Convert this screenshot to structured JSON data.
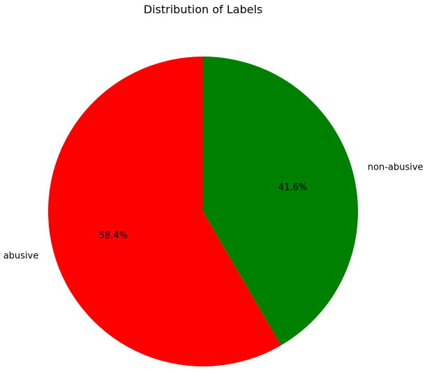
{
  "chart_data": {
    "type": "pie",
    "title": "Distribution of Labels",
    "slices": [
      {
        "label": "abusive",
        "value": 58.4,
        "pct_label": "58.4%",
        "color": "#ff0000"
      },
      {
        "label": "non-abusive",
        "value": 41.6,
        "pct_label": "41.6%",
        "color": "#008000"
      }
    ],
    "start_angle_deg": 90,
    "direction": "counterclockwise",
    "legend": "none"
  }
}
